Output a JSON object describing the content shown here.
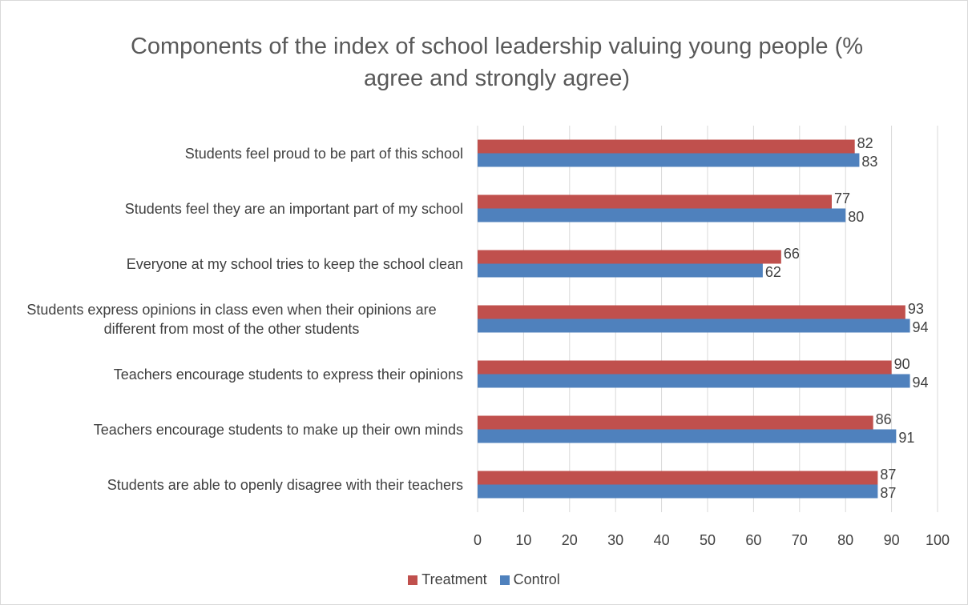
{
  "chart_data": {
    "type": "barh",
    "title": "Components of the index of school leadership valuing young people (% agree and strongly agree)",
    "categories": [
      "Students feel proud to be part of this school",
      "Students feel they are an important part of my school",
      "Everyone at my school tries to keep the school clean",
      "Students express opinions in class even when their opinions are different from most of the other students",
      "Teachers encourage students to express their opinions",
      "Teachers encourage students to make up their own minds",
      "Students are able to openly disagree with their teachers"
    ],
    "series": [
      {
        "name": "Treatment",
        "color": "#c0504d",
        "values": [
          82,
          77,
          66,
          93,
          90,
          86,
          87
        ]
      },
      {
        "name": "Control",
        "color": "#4f81bd",
        "values": [
          83,
          80,
          62,
          94,
          94,
          91,
          87
        ]
      }
    ],
    "xlim": [
      0,
      100
    ],
    "xticks": [
      0,
      10,
      20,
      30,
      40,
      50,
      60,
      70,
      80,
      90,
      100
    ],
    "grid": true,
    "legend": "bottom"
  }
}
